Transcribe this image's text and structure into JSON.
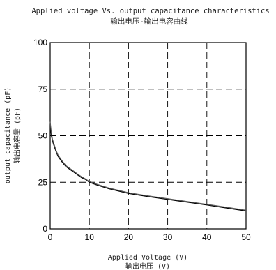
{
  "chart_data": {
    "type": "line",
    "title": "Applied voltage Vs. output capacitance characteristics",
    "subtitle": "输出电压-输出电容曲线",
    "xlabel": "Applied Voltage (V)",
    "xlabel_cn": "输出电压 (V)",
    "ylabel": "output capacitance (pF)",
    "ylabel_cn": "输出电容量 (pF)",
    "xlim": [
      0,
      50
    ],
    "ylim": [
      0,
      100
    ],
    "x_ticks": [
      0,
      10,
      20,
      30,
      40,
      50
    ],
    "y_ticks": [
      0,
      25,
      50,
      75,
      100
    ],
    "grid": "dashed",
    "series": [
      {
        "color": "#000000",
        "x": [
          0,
          0.3,
          0.6,
          1,
          1.5,
          2,
          3,
          4,
          5,
          6,
          7,
          8,
          9,
          10,
          12,
          15,
          20,
          25,
          30,
          35,
          40,
          45,
          50
        ],
        "values": [
          56,
          50,
          47,
          44.5,
          41.5,
          39,
          36,
          33.5,
          32,
          30.5,
          29,
          27.5,
          26.5,
          25,
          23.5,
          21.5,
          19,
          17.3,
          15.8,
          14.3,
          12.8,
          11.2,
          9.6
        ]
      },
      {
        "color": "#555555",
        "x": [
          0,
          0.3,
          0.6,
          1,
          1.5,
          2,
          3,
          4,
          5,
          6,
          7,
          8,
          9,
          10,
          12,
          15,
          20,
          25,
          30,
          35,
          40,
          45,
          50
        ],
        "values": [
          57.5,
          51.5,
          48,
          45.5,
          42.2,
          39.7,
          36.6,
          34,
          32.5,
          31,
          29.4,
          28,
          26.8,
          25.4,
          23.9,
          21.9,
          19.4,
          17.7,
          16.2,
          14.7,
          13.2,
          11.6,
          10
        ]
      }
    ]
  }
}
